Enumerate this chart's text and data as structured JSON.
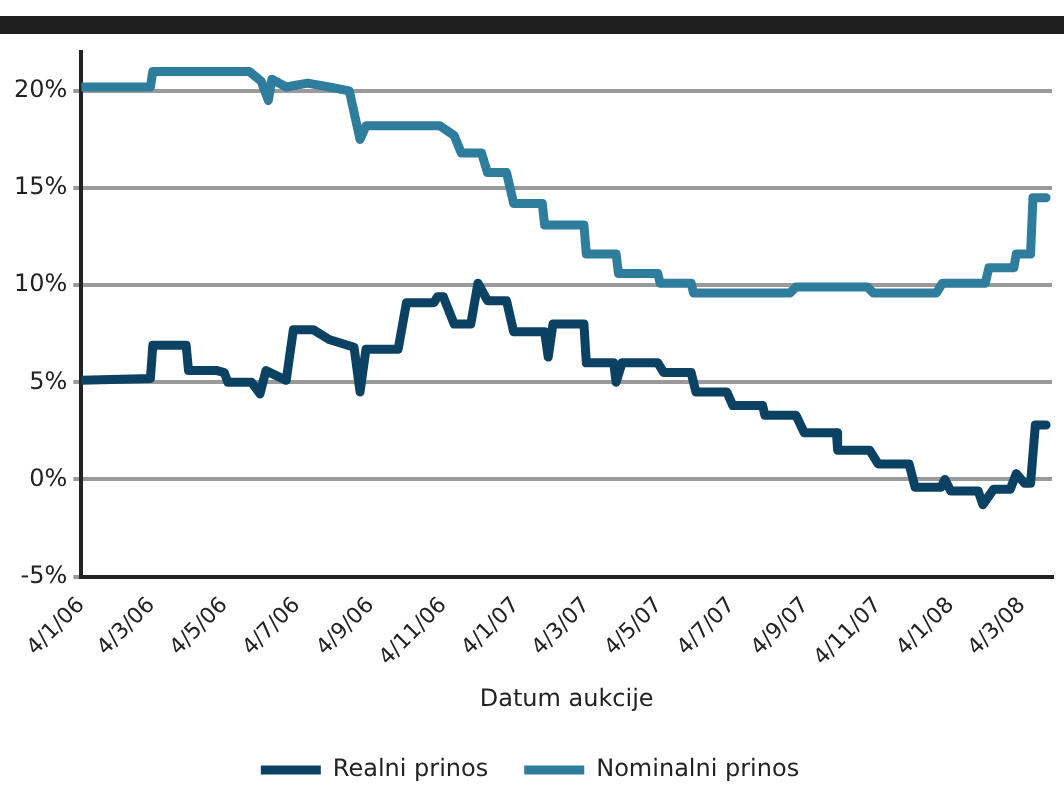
{
  "chart_data": {
    "type": "line",
    "xlabel": "Datum aukcije",
    "legend": "bottom",
    "grid": "y",
    "marker": "none",
    "line_style": "solid",
    "xlim": [
      "2006-01-04",
      "2008-03-29"
    ],
    "xticks": [
      {
        "value": "2006-01-04",
        "label": "4/1/06"
      },
      {
        "value": "2006-03-04",
        "label": "4/3/06"
      },
      {
        "value": "2006-05-04",
        "label": "4/5/06"
      },
      {
        "value": "2006-07-04",
        "label": "4/7/06"
      },
      {
        "value": "2006-09-04",
        "label": "4/9/06"
      },
      {
        "value": "2006-11-04",
        "label": "4/11/06"
      },
      {
        "value": "2007-01-04",
        "label": "4/1/07"
      },
      {
        "value": "2007-03-04",
        "label": "4/3/07"
      },
      {
        "value": "2007-05-04",
        "label": "4/5/07"
      },
      {
        "value": "2007-07-04",
        "label": "4/7/07"
      },
      {
        "value": "2007-09-04",
        "label": "4/9/07"
      },
      {
        "value": "2007-11-04",
        "label": "4/11/07"
      },
      {
        "value": "2008-01-04",
        "label": "4/1/08"
      },
      {
        "value": "2008-03-04",
        "label": "4/3/08"
      }
    ],
    "ylim": [
      -5,
      22
    ],
    "yticks": [
      {
        "value": -5,
        "label": "-5%"
      },
      {
        "value": 0,
        "label": "0%"
      },
      {
        "value": 5,
        "label": "5%"
      },
      {
        "value": 10,
        "label": "10%"
      },
      {
        "value": 15,
        "label": "15%"
      },
      {
        "value": 20,
        "label": "20%"
      }
    ],
    "series": [
      {
        "name": "Realni prinos",
        "color": "#0b4263",
        "x": [
          "2006-01-04",
          "2006-03-03",
          "2006-03-05",
          "2006-04-02",
          "2006-04-04",
          "2006-04-28",
          "2006-05-04",
          "2006-05-07",
          "2006-05-27",
          "2006-06-03",
          "2006-06-08",
          "2006-06-25",
          "2006-07-01",
          "2006-07-18",
          "2006-07-31",
          "2006-08-21",
          "2006-08-26",
          "2006-08-31",
          "2006-09-27",
          "2006-10-04",
          "2006-10-27",
          "2006-10-30",
          "2006-11-04",
          "2006-11-13",
          "2006-11-27",
          "2006-12-03",
          "2006-12-11",
          "2006-12-27",
          "2007-01-02",
          "2007-01-28",
          "2007-01-31",
          "2007-02-04",
          "2007-03-02",
          "2007-03-04",
          "2007-03-27",
          "2007-03-29",
          "2007-04-03",
          "2007-05-03",
          "2007-05-08",
          "2007-05-31",
          "2007-06-04",
          "2007-06-30",
          "2007-07-05",
          "2007-07-30",
          "2007-08-01",
          "2007-08-27",
          "2007-09-03",
          "2007-09-30",
          "2007-10-01",
          "2007-10-28",
          "2007-11-04",
          "2007-11-30",
          "2007-12-05",
          "2007-12-27",
          "2007-12-30",
          "2008-01-04",
          "2008-01-27",
          "2008-01-31",
          "2008-02-09",
          "2008-02-23",
          "2008-02-28",
          "2008-03-06",
          "2008-03-11",
          "2008-03-15",
          "2008-03-24"
        ],
        "values": [
          5.1,
          5.2,
          6.9,
          6.9,
          5.6,
          5.6,
          5.5,
          5.0,
          5.0,
          4.4,
          5.6,
          5.1,
          7.7,
          7.7,
          7.2,
          6.8,
          4.5,
          6.7,
          6.7,
          9.1,
          9.1,
          9.4,
          9.4,
          8.0,
          8.0,
          10.1,
          9.2,
          9.2,
          7.6,
          7.6,
          6.3,
          8.0,
          8.0,
          6.0,
          6.0,
          5.0,
          6.0,
          6.0,
          5.5,
          5.5,
          4.5,
          4.5,
          3.8,
          3.8,
          3.3,
          3.3,
          2.4,
          2.4,
          1.5,
          1.5,
          0.8,
          0.8,
          -0.4,
          -0.4,
          0.0,
          -0.6,
          -0.6,
          -1.3,
          -0.5,
          -0.5,
          0.3,
          -0.2,
          -0.2,
          2.8,
          2.8
        ]
      },
      {
        "name": "Nominalni prinos",
        "color": "#2f7d9d",
        "x": [
          "2006-01-04",
          "2006-03-03",
          "2006-03-05",
          "2006-05-25",
          "2006-06-04",
          "2006-06-10",
          "2006-06-13",
          "2006-06-25",
          "2006-07-13",
          "2006-07-31",
          "2006-08-17",
          "2006-08-26",
          "2006-08-31",
          "2006-11-01",
          "2006-11-13",
          "2006-11-19",
          "2006-12-06",
          "2006-12-11",
          "2006-12-27",
          "2007-01-02",
          "2007-01-26",
          "2007-01-28",
          "2007-03-02",
          "2007-03-04",
          "2007-03-29",
          "2007-03-31",
          "2007-05-03",
          "2007-05-05",
          "2007-05-31",
          "2007-06-02",
          "2007-08-22",
          "2007-08-27",
          "2007-10-26",
          "2007-10-31",
          "2007-12-23",
          "2007-12-28",
          "2008-02-02",
          "2008-02-05",
          "2008-02-26",
          "2008-02-28",
          "2008-03-11",
          "2008-03-13",
          "2008-03-24"
        ],
        "values": [
          20.2,
          20.2,
          21.0,
          21.0,
          20.5,
          19.5,
          20.6,
          20.2,
          20.4,
          20.2,
          20.0,
          17.5,
          18.2,
          18.2,
          17.7,
          16.8,
          16.8,
          15.8,
          15.8,
          14.2,
          14.2,
          13.1,
          13.1,
          11.6,
          11.6,
          10.6,
          10.6,
          10.1,
          10.1,
          9.6,
          9.6,
          9.9,
          9.9,
          9.6,
          9.6,
          10.1,
          10.1,
          10.9,
          10.9,
          11.6,
          11.6,
          14.5,
          14.5
        ]
      }
    ]
  }
}
